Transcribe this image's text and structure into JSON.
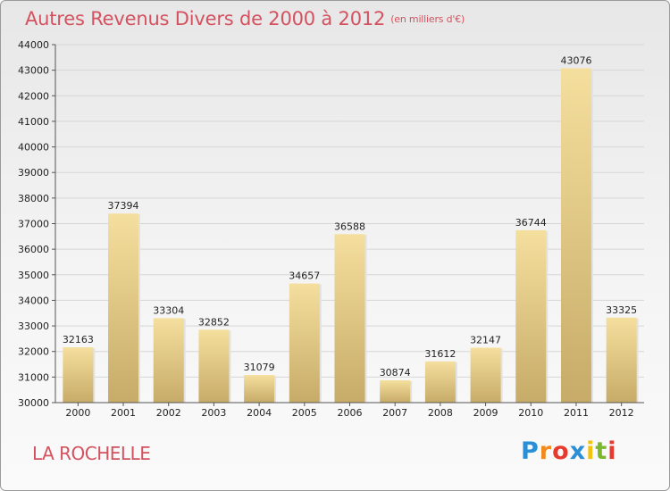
{
  "header": {
    "title": "Autres Revenus Divers de 2000 à 2012",
    "subtitle": "(en milliers d'€)"
  },
  "footer": {
    "city": "LA ROCHELLE",
    "logo_letters": [
      "P",
      "r",
      "o",
      "x",
      "i",
      "t",
      "i"
    ],
    "logo_colors": [
      "#2a8fd6",
      "#f08a1c",
      "#e63a2e",
      "#2a8fd6",
      "#f4c20d",
      "#7cb82f",
      "#e63a2e"
    ]
  },
  "chart_data": {
    "type": "bar",
    "title": "Autres Revenus Divers de 2000 à 2012",
    "categories": [
      "2000",
      "2001",
      "2002",
      "2003",
      "2004",
      "2005",
      "2006",
      "2007",
      "2008",
      "2009",
      "2010",
      "2011",
      "2012"
    ],
    "values": [
      32163,
      37394,
      33304,
      32852,
      31079,
      34657,
      36588,
      30874,
      31612,
      32147,
      36744,
      43076,
      33325
    ],
    "xlabel": "",
    "ylabel": "",
    "ylim": [
      30000,
      44000
    ],
    "yticks": [
      30000,
      31000,
      32000,
      33000,
      34000,
      35000,
      36000,
      37000,
      38000,
      39000,
      40000,
      41000,
      42000,
      43000,
      44000
    ],
    "grid": true,
    "bar_color_top": "#f5df9e",
    "bar_color_bottom": "#c7ab68"
  }
}
